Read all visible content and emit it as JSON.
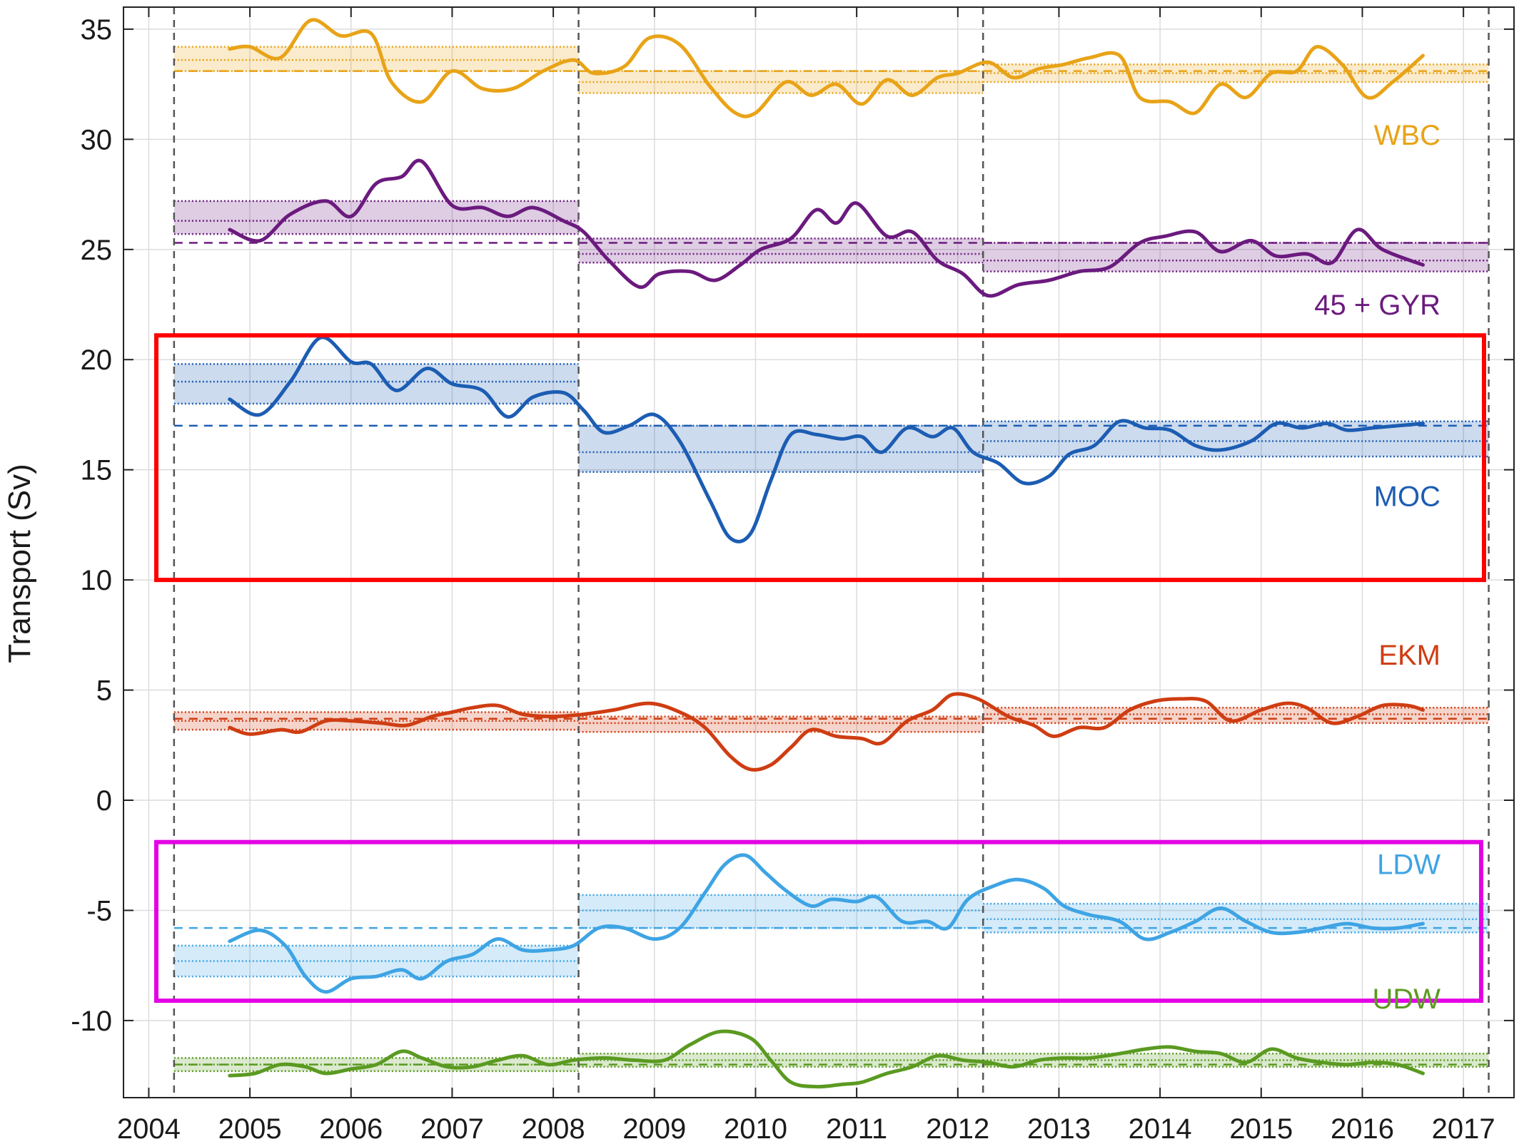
{
  "chart_data": {
    "type": "line",
    "title": "",
    "xlabel": "",
    "ylabel": "Transport (Sv)",
    "xlim": [
      2003.75,
      2017.5
    ],
    "ylim": [
      -13.5,
      36
    ],
    "x_ticks": [
      2004,
      2005,
      2006,
      2007,
      2008,
      2009,
      2010,
      2011,
      2012,
      2013,
      2014,
      2015,
      2016,
      2017
    ],
    "y_ticks": [
      35,
      30,
      25,
      20,
      15,
      10,
      5,
      0,
      -5,
      -10
    ],
    "y_tick_labels": [
      "35",
      "30",
      "25",
      "20",
      "15",
      "10",
      "5",
      "0",
      "-5",
      "-10"
    ],
    "grid": true,
    "period_boundaries": [
      2004.25,
      2008.25,
      2012.25,
      2017.25
    ],
    "highlight_boxes": [
      {
        "color": "#ff0000",
        "y_range": [
          10,
          21.1
        ]
      },
      {
        "color": "#e400e4",
        "y_range": [
          -9.1,
          -1.9
        ]
      }
    ],
    "series": [
      {
        "name": "WBC",
        "label": "WBC",
        "color": "#e8a317",
        "reference_mean": 33.1,
        "period_bands": [
          {
            "mean": 33.6,
            "lo": 33.1,
            "hi": 34.2
          },
          {
            "mean": 32.6,
            "lo": 32.1,
            "hi": 33.1
          },
          {
            "mean": 33.0,
            "lo": 32.6,
            "hi": 33.4
          }
        ],
        "x": [
          2004.8,
          2005.0,
          2005.3,
          2005.6,
          2005.9,
          2006.2,
          2006.4,
          2006.7,
          2007.0,
          2007.3,
          2007.6,
          2007.9,
          2008.2,
          2008.4,
          2008.7,
          2008.95,
          2009.25,
          2009.55,
          2009.8,
          2010.0,
          2010.3,
          2010.55,
          2010.8,
          2011.05,
          2011.3,
          2011.55,
          2011.8,
          2012.0,
          2012.3,
          2012.55,
          2012.8,
          2013.05,
          2013.3,
          2013.6,
          2013.8,
          2014.1,
          2014.35,
          2014.6,
          2014.85,
          2015.1,
          2015.35,
          2015.55,
          2015.8,
          2016.05,
          2016.3,
          2016.6
        ],
        "y": [
          34.1,
          34.2,
          33.7,
          35.4,
          34.7,
          34.8,
          32.6,
          31.7,
          33.1,
          32.3,
          32.3,
          33.1,
          33.6,
          33.0,
          33.3,
          34.6,
          34.3,
          32.4,
          31.2,
          31.2,
          32.6,
          32.0,
          32.5,
          31.6,
          32.7,
          32.0,
          32.8,
          33.0,
          33.5,
          32.8,
          33.2,
          33.4,
          33.7,
          33.8,
          31.9,
          31.7,
          31.2,
          32.5,
          31.9,
          33.0,
          33.1,
          34.2,
          33.4,
          31.9,
          32.6,
          33.8
        ]
      },
      {
        "name": "45 + GYR",
        "label": "45 + GYR",
        "color": "#6b1a7e",
        "reference_mean": 25.3,
        "period_bands": [
          {
            "mean": 26.3,
            "lo": 25.7,
            "hi": 27.2
          },
          {
            "mean": 24.8,
            "lo": 24.4,
            "hi": 25.5
          },
          {
            "mean": 24.5,
            "lo": 24.0,
            "hi": 25.3
          }
        ],
        "x": [
          2004.8,
          2005.1,
          2005.4,
          2005.75,
          2006.0,
          2006.25,
          2006.5,
          2006.7,
          2007.0,
          2007.3,
          2007.55,
          2007.8,
          2008.1,
          2008.3,
          2008.55,
          2008.85,
          2009.05,
          2009.35,
          2009.6,
          2009.85,
          2010.05,
          2010.35,
          2010.6,
          2010.8,
          2011.0,
          2011.3,
          2011.55,
          2011.8,
          2012.05,
          2012.3,
          2012.6,
          2012.9,
          2013.2,
          2013.5,
          2013.8,
          2014.05,
          2014.35,
          2014.6,
          2014.9,
          2015.15,
          2015.45,
          2015.7,
          2015.95,
          2016.2,
          2016.6
        ],
        "y": [
          25.9,
          25.4,
          26.6,
          27.2,
          26.5,
          28.0,
          28.3,
          29.0,
          27.0,
          26.9,
          26.5,
          26.9,
          26.3,
          25.8,
          24.5,
          23.3,
          23.9,
          24.0,
          23.6,
          24.3,
          25.0,
          25.5,
          26.8,
          26.2,
          27.1,
          25.6,
          25.8,
          24.5,
          23.9,
          22.9,
          23.4,
          23.6,
          24.0,
          24.2,
          25.3,
          25.6,
          25.8,
          24.9,
          25.4,
          24.7,
          24.8,
          24.4,
          25.9,
          25.0,
          24.3
        ]
      },
      {
        "name": "MOC",
        "label": "MOC",
        "color": "#1c5db3",
        "reference_mean": 17.0,
        "period_bands": [
          {
            "mean": 19.0,
            "lo": 18.0,
            "hi": 19.8
          },
          {
            "mean": 15.8,
            "lo": 14.9,
            "hi": 17.0
          },
          {
            "mean": 16.3,
            "lo": 15.6,
            "hi": 17.2
          }
        ],
        "x": [
          2004.8,
          2005.1,
          2005.4,
          2005.7,
          2006.0,
          2006.2,
          2006.45,
          2006.75,
          2007.0,
          2007.3,
          2007.55,
          2007.8,
          2008.1,
          2008.3,
          2008.5,
          2008.75,
          2009.0,
          2009.25,
          2009.55,
          2009.75,
          2009.95,
          2010.15,
          2010.35,
          2010.6,
          2010.85,
          2011.05,
          2011.25,
          2011.5,
          2011.75,
          2011.95,
          2012.15,
          2012.4,
          2012.65,
          2012.9,
          2013.1,
          2013.35,
          2013.6,
          2013.85,
          2014.1,
          2014.35,
          2014.6,
          2014.9,
          2015.15,
          2015.4,
          2015.65,
          2015.85,
          2016.1,
          2016.35,
          2016.6
        ],
        "y": [
          18.2,
          17.5,
          19.0,
          21.0,
          19.9,
          19.8,
          18.6,
          19.6,
          18.9,
          18.6,
          17.4,
          18.3,
          18.5,
          17.7,
          16.7,
          17.0,
          17.5,
          16.3,
          13.6,
          11.9,
          12.1,
          14.5,
          16.6,
          16.6,
          16.4,
          16.5,
          15.8,
          16.9,
          16.5,
          16.9,
          15.8,
          15.3,
          14.4,
          14.7,
          15.7,
          16.1,
          17.2,
          16.9,
          16.8,
          16.1,
          15.9,
          16.3,
          17.1,
          16.9,
          17.1,
          16.8,
          16.9,
          17.0,
          17.1
        ]
      },
      {
        "name": "EKM",
        "label": "EKM",
        "color": "#cf3d12",
        "reference_mean": 3.7,
        "period_bands": [
          {
            "mean": 3.6,
            "lo": 3.2,
            "hi": 4.0
          },
          {
            "mean": 3.5,
            "lo": 3.1,
            "hi": 3.8
          },
          {
            "mean": 3.9,
            "lo": 3.5,
            "hi": 4.2
          }
        ],
        "x": [
          2004.8,
          2005.0,
          2005.3,
          2005.5,
          2005.75,
          2006.0,
          2006.3,
          2006.55,
          2006.8,
          2007.0,
          2007.2,
          2007.45,
          2007.7,
          2008.0,
          2008.3,
          2008.6,
          2008.95,
          2009.25,
          2009.5,
          2009.75,
          2009.95,
          2010.15,
          2010.35,
          2010.55,
          2010.8,
          2011.05,
          2011.25,
          2011.5,
          2011.75,
          2011.95,
          2012.2,
          2012.5,
          2012.75,
          2012.95,
          2013.2,
          2013.45,
          2013.7,
          2013.95,
          2014.2,
          2014.45,
          2014.7,
          2015.0,
          2015.25,
          2015.45,
          2015.7,
          2015.95,
          2016.2,
          2016.45,
          2016.6
        ],
        "y": [
          3.3,
          3.0,
          3.2,
          3.1,
          3.6,
          3.6,
          3.5,
          3.4,
          3.8,
          4.0,
          4.2,
          4.3,
          3.9,
          3.8,
          3.9,
          4.1,
          4.4,
          4.0,
          3.3,
          2.0,
          1.4,
          1.6,
          2.4,
          3.2,
          2.9,
          2.8,
          2.6,
          3.6,
          4.1,
          4.8,
          4.6,
          3.8,
          3.4,
          2.9,
          3.3,
          3.3,
          4.1,
          4.5,
          4.6,
          4.5,
          3.6,
          4.1,
          4.4,
          4.2,
          3.5,
          3.8,
          4.3,
          4.3,
          4.1
        ]
      },
      {
        "name": "LDW",
        "label": "LDW",
        "color": "#3ea4e4",
        "reference_mean": -5.8,
        "period_bands": [
          {
            "mean": -7.3,
            "lo": -8.0,
            "hi": -6.6
          },
          {
            "mean": -5.0,
            "lo": -5.8,
            "hi": -4.3
          },
          {
            "mean": -5.4,
            "lo": -6.0,
            "hi": -4.7
          }
        ],
        "x": [
          2004.8,
          2005.1,
          2005.35,
          2005.55,
          2005.75,
          2006.0,
          2006.25,
          2006.5,
          2006.7,
          2006.95,
          2007.2,
          2007.45,
          2007.7,
          2007.95,
          2008.2,
          2008.45,
          2008.7,
          2009.0,
          2009.25,
          2009.5,
          2009.7,
          2009.9,
          2010.1,
          2010.3,
          2010.55,
          2010.75,
          2011.0,
          2011.2,
          2011.45,
          2011.7,
          2011.9,
          2012.1,
          2012.35,
          2012.6,
          2012.85,
          2013.05,
          2013.3,
          2013.6,
          2013.85,
          2014.1,
          2014.35,
          2014.6,
          2014.85,
          2015.1,
          2015.35,
          2015.6,
          2015.85,
          2016.1,
          2016.35,
          2016.6
        ],
        "y": [
          -6.4,
          -5.9,
          -6.6,
          -8.0,
          -8.7,
          -8.1,
          -8.0,
          -7.7,
          -8.1,
          -7.3,
          -7.0,
          -6.3,
          -6.8,
          -6.8,
          -6.6,
          -5.8,
          -5.8,
          -6.3,
          -5.8,
          -4.2,
          -2.9,
          -2.5,
          -3.3,
          -4.1,
          -4.8,
          -4.5,
          -4.6,
          -4.4,
          -5.5,
          -5.5,
          -5.8,
          -4.5,
          -3.9,
          -3.6,
          -4.0,
          -4.8,
          -5.2,
          -5.5,
          -6.3,
          -6.0,
          -5.5,
          -4.9,
          -5.5,
          -6.0,
          -6.0,
          -5.8,
          -5.6,
          -5.8,
          -5.8,
          -5.6
        ]
      },
      {
        "name": "UDW",
        "label": "UDW",
        "color": "#5a9a21",
        "reference_mean": -12.0,
        "period_bands": [
          {
            "mean": -12.0,
            "lo": -12.3,
            "hi": -11.7
          },
          {
            "mean": -11.8,
            "lo": -12.1,
            "hi": -11.5
          },
          {
            "mean": -11.8,
            "lo": -12.1,
            "hi": -11.5
          }
        ],
        "x": [
          2004.8,
          2005.05,
          2005.3,
          2005.55,
          2005.75,
          2006.0,
          2006.25,
          2006.5,
          2006.7,
          2006.95,
          2007.2,
          2007.45,
          2007.7,
          2007.95,
          2008.2,
          2008.5,
          2008.8,
          2009.1,
          2009.35,
          2009.65,
          2009.95,
          2010.15,
          2010.35,
          2010.6,
          2010.85,
          2011.05,
          2011.3,
          2011.55,
          2011.8,
          2012.05,
          2012.3,
          2012.55,
          2012.8,
          2013.05,
          2013.3,
          2013.6,
          2013.85,
          2014.1,
          2014.35,
          2014.6,
          2014.85,
          2015.1,
          2015.35,
          2015.6,
          2015.85,
          2016.1,
          2016.35,
          2016.6
        ],
        "y": [
          -12.5,
          -12.4,
          -12.0,
          -12.1,
          -12.4,
          -12.2,
          -12.0,
          -11.4,
          -11.7,
          -12.1,
          -12.1,
          -11.8,
          -11.6,
          -12.0,
          -11.8,
          -11.7,
          -11.8,
          -11.8,
          -11.1,
          -10.5,
          -10.8,
          -11.8,
          -12.8,
          -13.0,
          -12.9,
          -12.8,
          -12.4,
          -12.1,
          -11.6,
          -11.8,
          -11.9,
          -12.1,
          -11.8,
          -11.7,
          -11.7,
          -11.5,
          -11.3,
          -11.2,
          -11.4,
          -11.5,
          -11.9,
          -11.3,
          -11.7,
          -11.9,
          -12.0,
          -11.9,
          -12.0,
          -12.4
        ]
      }
    ]
  }
}
